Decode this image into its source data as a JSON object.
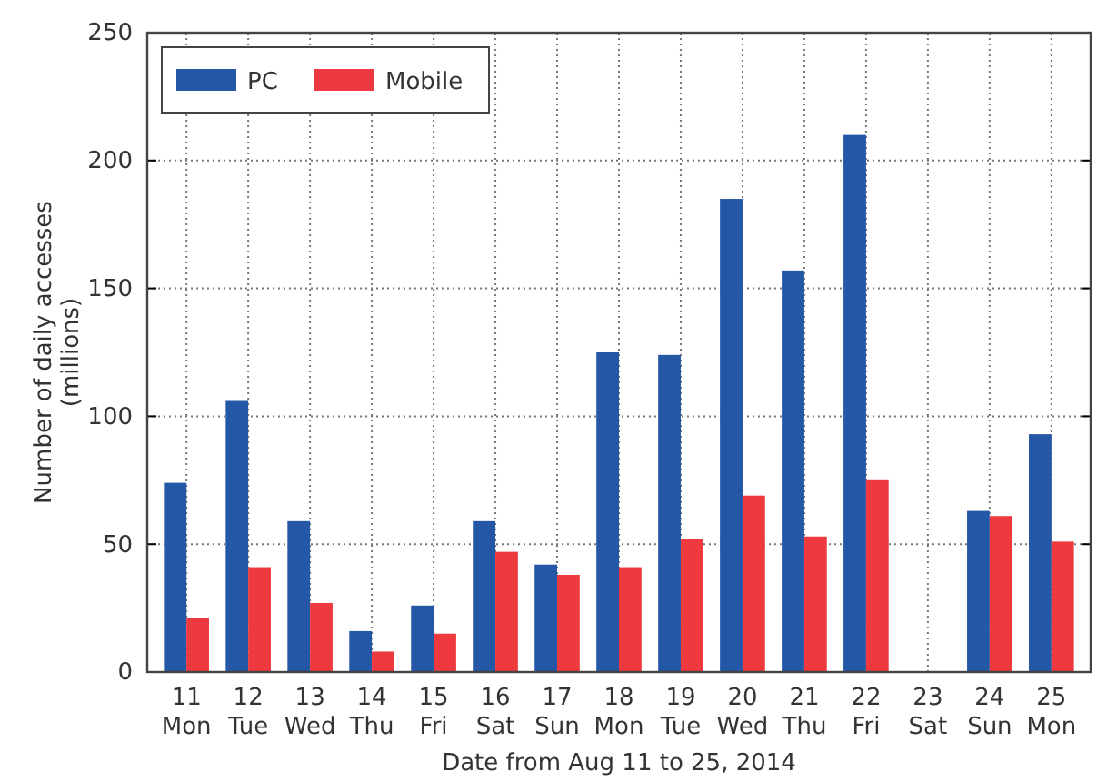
{
  "chart_data": {
    "type": "bar",
    "xlabel": "Date from Aug 11 to 25, 2014",
    "ylabel": "Number of daily accesses (millions)",
    "categories": [
      "11 Mon",
      "12 Tue",
      "13 Wed",
      "14 Thu",
      "15 Fri",
      "16 Sat",
      "17 Sun",
      "18 Mon",
      "19 Tue",
      "20 Wed",
      "21 Thu",
      "22 Fri",
      "23 Sat",
      "24 Sun",
      "25 Mon"
    ],
    "series": [
      {
        "name": "PC",
        "color": "#2557a7",
        "values": [
          74,
          106,
          59,
          16,
          26,
          59,
          42,
          125,
          124,
          185,
          157,
          210,
          null,
          63,
          93
        ]
      },
      {
        "name": "Mobile",
        "color": "#ee3a3e",
        "values": [
          21,
          41,
          27,
          8,
          15,
          47,
          38,
          41,
          52,
          69,
          53,
          75,
          null,
          61,
          51
        ]
      }
    ],
    "ylim": [
      0,
      250
    ],
    "yticks": [
      0,
      50,
      100,
      150,
      200,
      250
    ],
    "grid": true,
    "legend": "top left"
  }
}
